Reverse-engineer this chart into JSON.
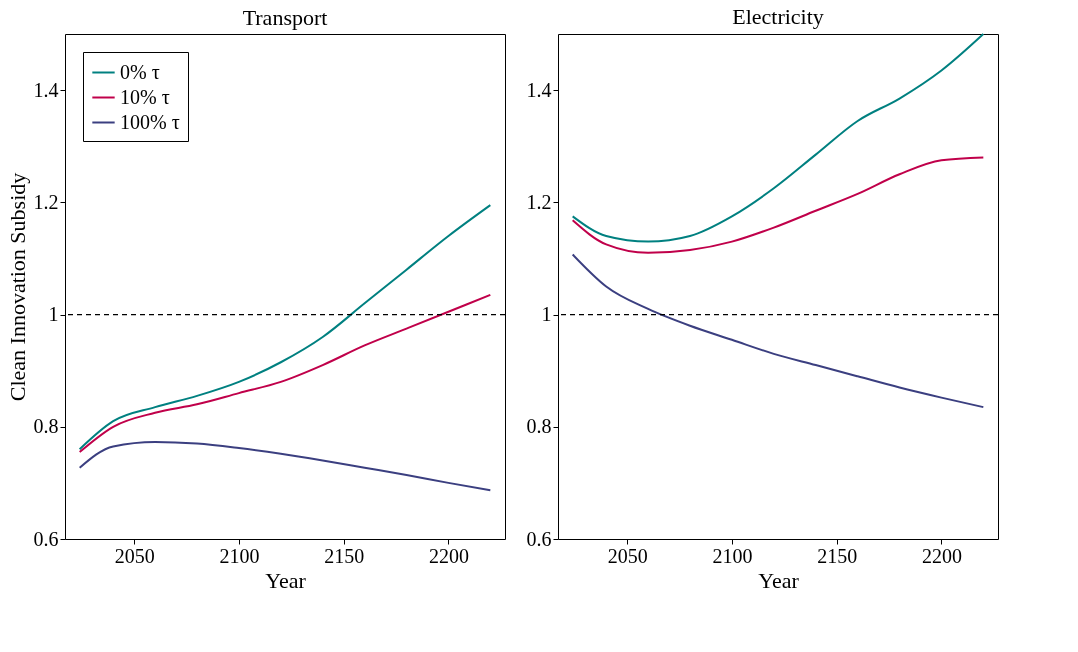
{
  "chart_data": [
    {
      "type": "line",
      "title": "Transport",
      "xlabel": "Year",
      "ylabel": "Clean Innovation Subsidy",
      "xlim": [
        2017,
        2227
      ],
      "ylim": [
        0.6,
        1.5
      ],
      "xticks": [
        2050,
        2100,
        2150,
        2200
      ],
      "yticks": [
        0.6,
        0.8,
        1,
        1.2,
        1.4
      ],
      "grid": false,
      "legend": "top left",
      "line_style": "solid",
      "marker": "none",
      "x": [
        2024,
        2040,
        2060,
        2080,
        2100,
        2120,
        2140,
        2160,
        2180,
        2200,
        2220
      ],
      "series": [
        {
          "name": "0% τ",
          "color": "#008080",
          "values": [
            0.76,
            0.81,
            0.835,
            0.855,
            0.88,
            0.915,
            0.96,
            1.02,
            1.08,
            1.14,
            1.195
          ]
        },
        {
          "name": "10% τ",
          "color": "#c0004a",
          "values": [
            0.755,
            0.8,
            0.825,
            0.84,
            0.86,
            0.88,
            0.91,
            0.945,
            0.975,
            1.005,
            1.035
          ]
        },
        {
          "name": "100% τ",
          "color": "#3b3f80",
          "values": [
            0.727,
            0.765,
            0.773,
            0.77,
            0.762,
            0.752,
            0.74,
            0.727,
            0.714,
            0.7,
            0.687
          ]
        }
      ],
      "ref_lines": [
        {
          "axis": "y",
          "value": 1,
          "line_style": "dashed",
          "color": "#000000"
        }
      ]
    },
    {
      "type": "line",
      "title": "Electricity",
      "xlabel": "Year",
      "xlim": [
        2017,
        2227
      ],
      "ylim": [
        0.6,
        1.5
      ],
      "xticks": [
        2050,
        2100,
        2150,
        2200
      ],
      "yticks": [
        0.6,
        0.8,
        1,
        1.2,
        1.4
      ],
      "grid": false,
      "line_style": "solid",
      "marker": "none",
      "x": [
        2024,
        2040,
        2060,
        2080,
        2100,
        2120,
        2140,
        2160,
        2180,
        2200,
        2220
      ],
      "series": [
        {
          "color": "#008080",
          "values": [
            1.175,
            1.14,
            1.13,
            1.14,
            1.175,
            1.225,
            1.285,
            1.345,
            1.385,
            1.435,
            1.5
          ]
        },
        {
          "color": "#c0004a",
          "values": [
            1.168,
            1.125,
            1.11,
            1.115,
            1.13,
            1.155,
            1.185,
            1.215,
            1.25,
            1.275,
            1.28
          ]
        },
        {
          "color": "#3b3f80",
          "values": [
            1.107,
            1.05,
            1.01,
            0.98,
            0.955,
            0.93,
            0.91,
            0.89,
            0.87,
            0.852,
            0.835
          ]
        }
      ],
      "ref_lines": [
        {
          "axis": "y",
          "value": 1,
          "line_style": "dashed",
          "color": "#000000"
        }
      ]
    }
  ]
}
